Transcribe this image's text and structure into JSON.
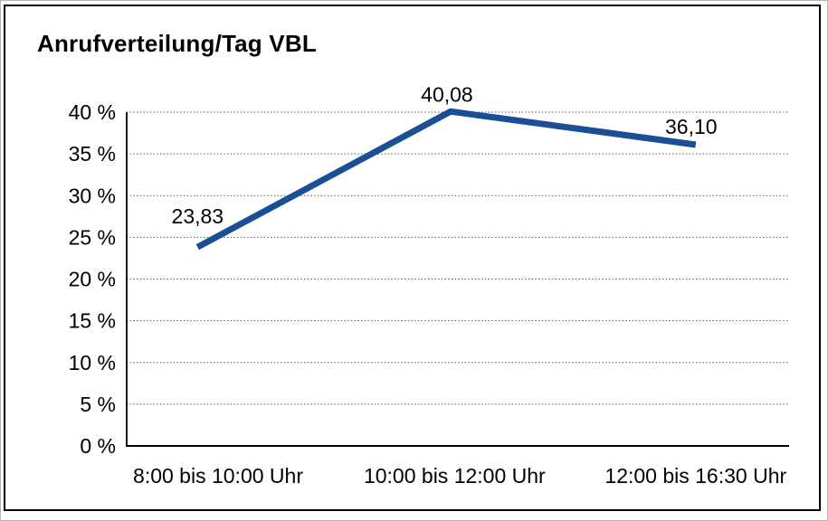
{
  "title": "Anrufverteilung/Tag VBL",
  "chart_data": {
    "type": "line",
    "title": "Anrufverteilung/Tag VBL",
    "categories": [
      "8:00 bis 10:00 Uhr",
      "10:00 bis 12:00 Uhr",
      "12:00 bis 16:30 Uhr"
    ],
    "values": [
      23.83,
      40.08,
      36.1
    ],
    "data_labels": [
      "23,83",
      "40,08",
      "36,10"
    ],
    "y_ticks": [
      0,
      5,
      10,
      15,
      20,
      25,
      30,
      35,
      40
    ],
    "y_tick_labels": [
      "0 %",
      "5 %",
      "10 %",
      "15 %",
      "20 %",
      "25 %",
      "30 %",
      "35 %",
      "40 %"
    ],
    "ylim": [
      0,
      40
    ],
    "xlabel": "",
    "ylabel": "",
    "grid": "horizontal-dotted",
    "legend": "none",
    "colors": {
      "line": "#1a4f96",
      "axis": "#000000",
      "grid": "#4d4d4d",
      "text": "#000000"
    }
  }
}
